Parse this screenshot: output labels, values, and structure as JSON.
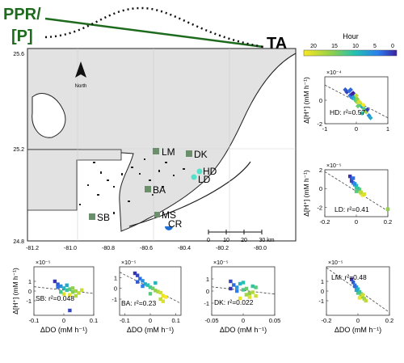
{
  "banner": {
    "line1": "PPR/",
    "line2": "[P]",
    "right_label": "TA",
    "accent_color": "#1e6b1e"
  },
  "map": {
    "y_ticks": [
      "25.6",
      "25.2",
      "24.8"
    ],
    "x_ticks": [
      "-81.2",
      "-81.0",
      "-80.8",
      "-80.6",
      "-80.4",
      "-80.2",
      "-80.0"
    ],
    "north_label": "North",
    "scalebar_ticks": [
      "0",
      "10",
      "20",
      "30 km"
    ],
    "sites": [
      {
        "code": "LM",
        "color": "#6b8e6b"
      },
      {
        "code": "DK",
        "color": "#6b8e6b"
      },
      {
        "code": "HD",
        "color": "#55e0c8"
      },
      {
        "code": "LD",
        "color": "#55e0c8"
      },
      {
        "code": "BA",
        "color": "#6b8e6b"
      },
      {
        "code": "SB",
        "color": "#6b8e6b"
      },
      {
        "code": "MS",
        "color": "#6b8e6b"
      },
      {
        "code": "CR",
        "color": "#1f6fd6"
      }
    ]
  },
  "colorbar": {
    "label": "Hour",
    "ticks": [
      "20",
      "15",
      "10",
      "5",
      "0"
    ]
  },
  "chart_data": [
    {
      "type": "scatter",
      "site": "HD",
      "annotation": "HD: r²=0.57",
      "exponent": "×10⁻⁴",
      "ylabel": "Δ[H⁺] (mM h⁻¹)",
      "xlim": [
        -1,
        1
      ],
      "ylim": [
        -2,
        2
      ],
      "x_ticks": [
        "-1",
        "0",
        "1"
      ],
      "y_ticks": [
        "-2",
        "0"
      ],
      "x": [
        -0.35,
        -0.3,
        -0.22,
        -0.2,
        -0.15,
        -0.12,
        -0.08,
        -0.05,
        -0.02,
        0.0,
        0.03,
        0.05,
        0.08,
        0.1,
        0.13,
        0.16,
        0.2,
        0.24,
        0.28,
        0.32,
        -0.1,
        0.0,
        0.12,
        0.22,
        0.35,
        0.4,
        0.18,
        0.05,
        -0.18,
        0.45
      ],
      "y": [
        0.9,
        0.7,
        0.8,
        0.4,
        0.5,
        0.2,
        0.3,
        0.1,
        0.0,
        -0.1,
        0.1,
        -0.2,
        -0.1,
        -0.3,
        -0.4,
        -0.5,
        -0.6,
        -0.7,
        -0.9,
        -1.0,
        0.6,
        0.4,
        -0.2,
        -0.4,
        -0.8,
        -1.3,
        -1.1,
        -0.5,
        0.9,
        -1.5
      ],
      "hour": [
        3,
        2,
        4,
        5,
        1,
        6,
        8,
        10,
        12,
        14,
        16,
        18,
        20,
        22,
        9,
        11,
        7,
        13,
        15,
        17,
        0,
        19,
        21,
        23,
        2,
        6,
        10,
        14,
        4,
        8
      ],
      "fit": [
        [
          -1,
          1.3
        ],
        [
          1,
          -1.5
        ]
      ]
    },
    {
      "type": "scatter",
      "site": "LD",
      "annotation": "LD: r²=0.41",
      "exponent": "×10⁻⁵",
      "ylabel": "Δ[H⁺] (mM h⁻¹)",
      "xlim": [
        -0.2,
        0.2
      ],
      "ylim": [
        -3,
        2
      ],
      "x_ticks": [
        "-0.2",
        "0",
        "0.2"
      ],
      "y_ticks": [
        "-2",
        "0",
        "2"
      ],
      "x": [
        -0.04,
        -0.03,
        -0.02,
        -0.01,
        0.0,
        0.01,
        0.02,
        0.03,
        0.04,
        -0.03,
        0.0,
        0.02,
        -0.01,
        0.01,
        0.03,
        -0.02,
        0.0,
        0.05,
        0.2
      ],
      "y": [
        1.3,
        1.0,
        0.6,
        0.4,
        0.1,
        -0.2,
        -0.3,
        -0.5,
        -0.7,
        0.8,
        0.3,
        -0.1,
        0.5,
        0.0,
        -0.4,
        1.1,
        -0.3,
        -0.6,
        -2.2
      ],
      "hour": [
        1,
        3,
        5,
        8,
        12,
        15,
        18,
        20,
        22,
        2,
        10,
        14,
        6,
        11,
        19,
        4,
        13,
        21,
        16
      ],
      "fit": [
        [
          -0.2,
          1.8
        ],
        [
          0.2,
          -2.4
        ]
      ]
    },
    {
      "type": "scatter",
      "site": "SB",
      "annotation": "SB: r²=0.048",
      "exponent": "×10⁻⁵",
      "ylabel": "Δ[H⁺] (mM h⁻¹)",
      "xlabel": "ΔDO (mM h⁻¹)",
      "xlim": [
        -0.1,
        0.1
      ],
      "ylim": [
        -2.5,
        2.5
      ],
      "x_ticks": [
        "-0.1",
        "0",
        "0.1"
      ],
      "y_ticks": [
        "-1",
        "0",
        "1"
      ],
      "x": [
        -0.03,
        -0.02,
        -0.01,
        0.0,
        0.01,
        0.02,
        0.03,
        0.04,
        0.05,
        -0.02,
        0.0,
        0.02,
        0.01,
        -0.01,
        0.03,
        0.04,
        0.06,
        0.02
      ],
      "y": [
        1.0,
        0.7,
        0.5,
        0.3,
        0.1,
        0.2,
        -0.1,
        0.0,
        -0.2,
        0.4,
        -0.3,
        -0.4,
        0.6,
        -0.1,
        0.3,
        -0.5,
        0.1,
        -2.0
      ],
      "hour": [
        1,
        3,
        6,
        9,
        11,
        13,
        15,
        17,
        19,
        4,
        21,
        22,
        8,
        12,
        16,
        18,
        20,
        2
      ],
      "fit": [
        [
          -0.1,
          0.45
        ],
        [
          0.1,
          -0.25
        ]
      ]
    },
    {
      "type": "scatter",
      "site": "BA",
      "annotation": "BA: r²=0.23",
      "exponent": "×10⁻⁵",
      "xlabel": "ΔDO (mM h⁻¹)",
      "xlim": [
        -0.12,
        0.12
      ],
      "ylim": [
        -2.5,
        2
      ],
      "x_ticks": [
        "-0.1",
        "0",
        "0.1"
      ],
      "y_ticks": [
        "-1",
        "0",
        "1"
      ],
      "x": [
        -0.06,
        -0.05,
        -0.04,
        -0.03,
        -0.02,
        -0.01,
        0.0,
        0.01,
        0.02,
        0.03,
        0.04,
        0.05,
        0.06,
        -0.03,
        0.0,
        0.02,
        0.04,
        -0.05,
        0.05
      ],
      "y": [
        1.4,
        1.2,
        0.9,
        0.7,
        0.4,
        0.3,
        0.1,
        0.0,
        -0.2,
        -0.3,
        -0.4,
        -0.7,
        -0.8,
        0.2,
        -0.5,
        0.5,
        -1.0,
        0.6,
        -1.2
      ],
      "hour": [
        1,
        2,
        4,
        6,
        8,
        10,
        12,
        14,
        16,
        18,
        20,
        22,
        23,
        5,
        13,
        9,
        19,
        3,
        21
      ],
      "fit": [
        [
          -0.12,
          1.5
        ],
        [
          0.12,
          -1.4
        ]
      ]
    },
    {
      "type": "scatter",
      "site": "DK",
      "annotation": "DK: r²=0.022",
      "exponent": "×10⁻⁵",
      "xlabel": "ΔDO (mM h⁻¹)",
      "xlim": [
        -0.05,
        0.05
      ],
      "ylim": [
        -2,
        2
      ],
      "x_ticks": [
        "-0.05",
        "0",
        "0.05"
      ],
      "y_ticks": [
        "-1",
        "0",
        "1"
      ],
      "x": [
        -0.02,
        -0.015,
        -0.01,
        -0.005,
        0.0,
        0.005,
        0.01,
        0.015,
        0.02,
        -0.01,
        0.0,
        0.01,
        0.02,
        -0.02,
        0.005,
        0.015,
        -0.005
      ],
      "y": [
        0.8,
        0.5,
        0.3,
        0.6,
        0.1,
        0.2,
        -0.2,
        -0.1,
        -0.4,
        0.0,
        0.7,
        -0.5,
        0.3,
        0.2,
        -0.3,
        0.4,
        -0.6
      ],
      "hour": [
        2,
        4,
        7,
        9,
        12,
        14,
        16,
        18,
        20,
        5,
        10,
        21,
        13,
        1,
        17,
        11,
        22
      ],
      "fit": [
        [
          -0.05,
          0.35
        ],
        [
          0.05,
          -0.25
        ]
      ]
    },
    {
      "type": "scatter",
      "site": "LM",
      "annotation": "LM: r²=0.48",
      "exponent": "×10⁻⁵",
      "xlabel": "ΔDO (mM h⁻¹)",
      "xlim": [
        -0.2,
        0.2
      ],
      "ylim": [
        -2.5,
        2.5
      ],
      "x_ticks": [
        "-0.2",
        "0",
        "0.2"
      ],
      "y_ticks": [
        "-1",
        "0",
        "1"
      ],
      "x": [
        -0.04,
        -0.03,
        -0.02,
        -0.01,
        0.0,
        0.01,
        0.02,
        0.03,
        0.04,
        0.05,
        -0.02,
        0.0,
        0.02,
        0.03,
        -0.01,
        0.01
      ],
      "y": [
        1.2,
        0.9,
        0.6,
        0.4,
        0.2,
        -0.1,
        -0.3,
        -0.6,
        -0.8,
        -1.0,
        0.5,
        -0.2,
        -0.5,
        -0.4,
        0.1,
        -0.7
      ],
      "hour": [
        1,
        3,
        5,
        7,
        9,
        11,
        13,
        15,
        17,
        19,
        4,
        12,
        16,
        20,
        8,
        22
      ],
      "fit": [
        [
          -0.2,
          2.4
        ],
        [
          0.2,
          -2.2
        ]
      ]
    }
  ]
}
